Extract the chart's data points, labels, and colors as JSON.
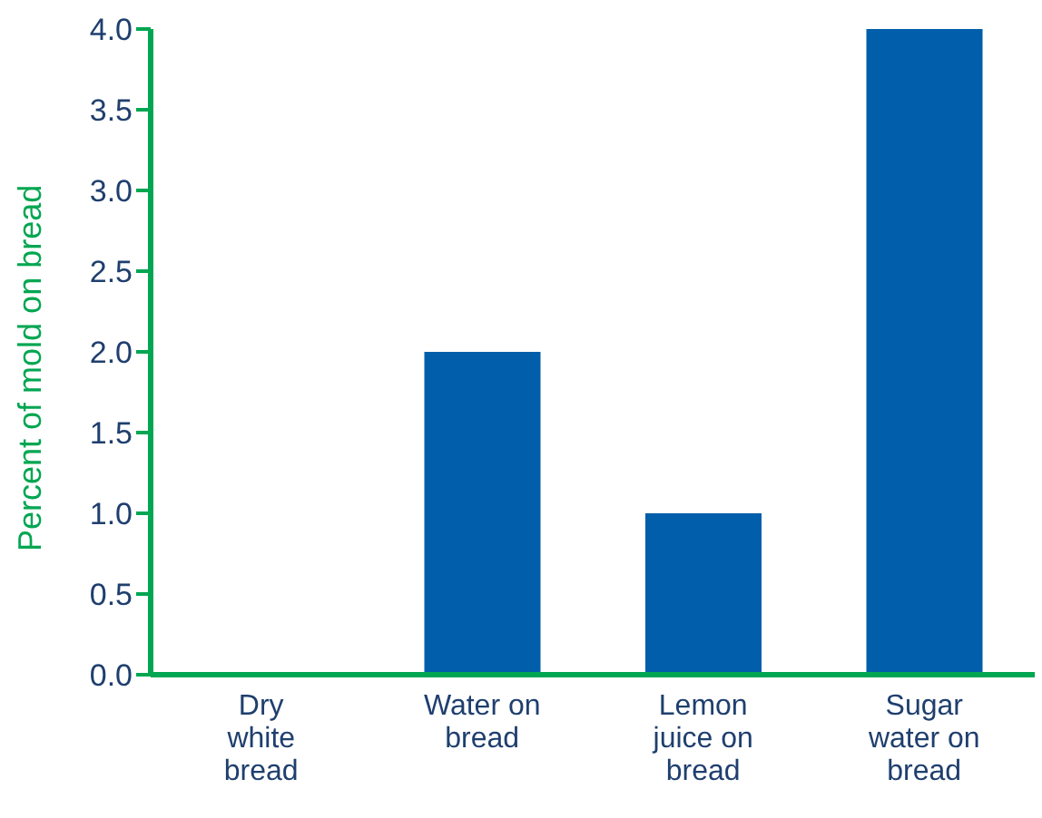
{
  "chart_data": {
    "type": "bar",
    "ylabel": "Percent of mold on bread",
    "categories": [
      "Dry white bread",
      "Water on bread",
      "Lemon juice on bread",
      "Sugar water on bread"
    ],
    "values": [
      0,
      2.0,
      1.0,
      4.0
    ],
    "color": "#005eaa",
    "ylim": [
      0,
      4.0
    ],
    "yticks": [
      {
        "value": 0,
        "label": "0.0"
      },
      {
        "value": 0.5,
        "label": "0.5"
      },
      {
        "value": 1,
        "label": "1.0"
      },
      {
        "value": 1.5,
        "label": "1.5"
      },
      {
        "value": 2,
        "label": "2.0"
      },
      {
        "value": 2.5,
        "label": "2.5"
      },
      {
        "value": 3,
        "label": "3.0"
      },
      {
        "value": 3.5,
        "label": "3.5"
      },
      {
        "value": 4,
        "label": "4.0"
      }
    ],
    "grid": false,
    "legend": false
  }
}
